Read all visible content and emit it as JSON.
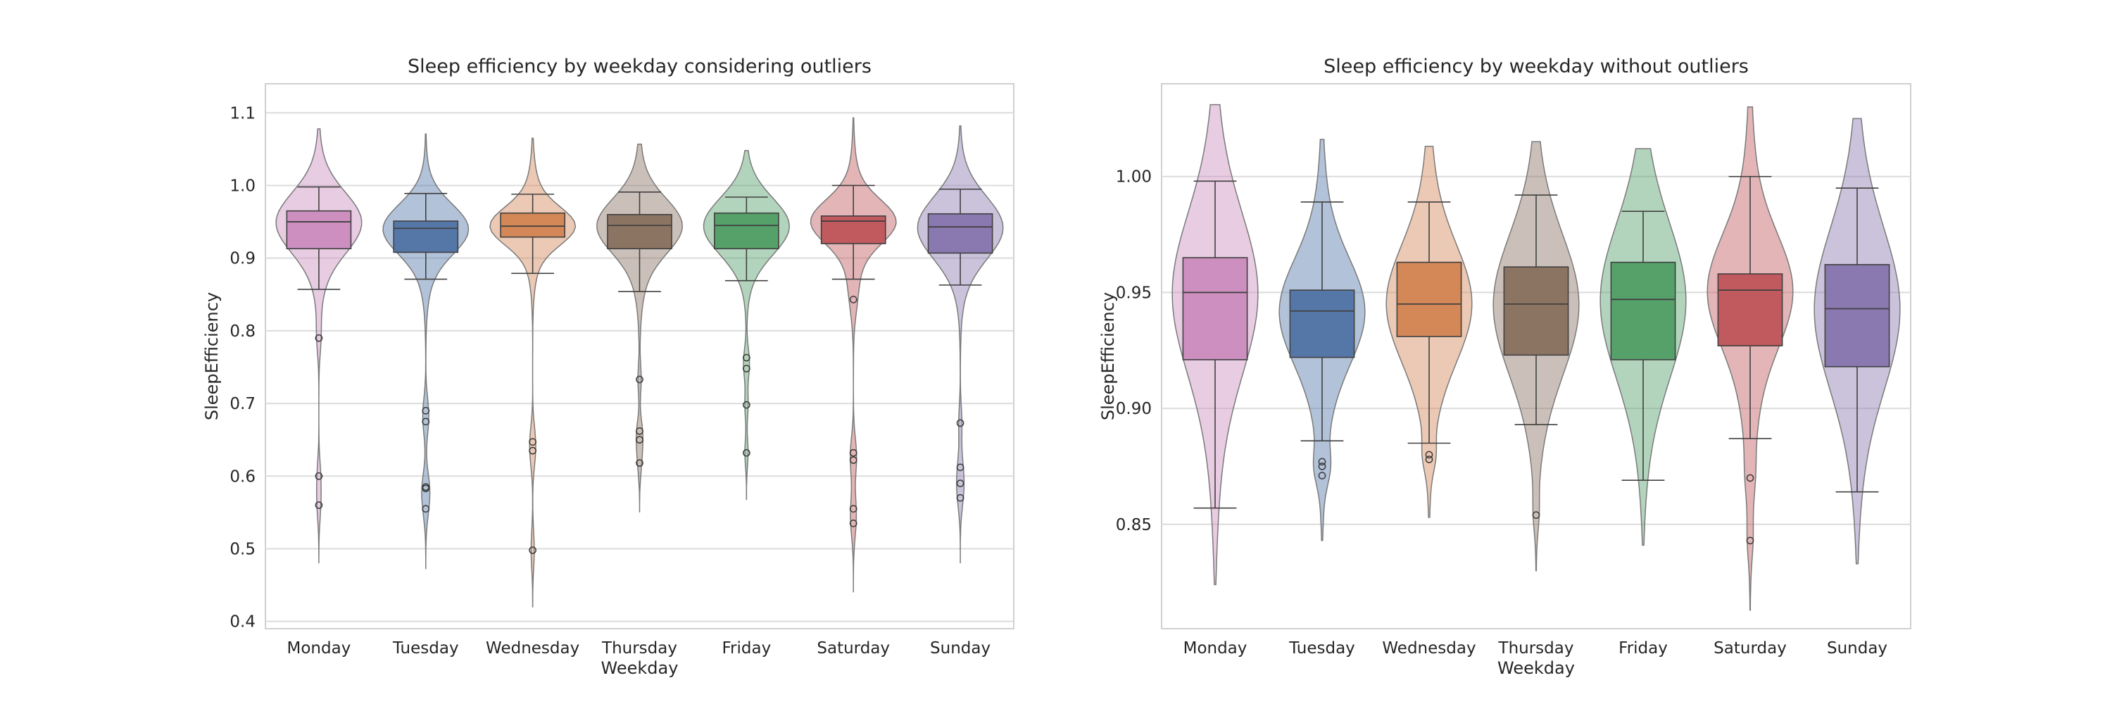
{
  "chart_data": [
    {
      "type": "violin+box",
      "title": "Sleep efficiency by weekday considering outliers",
      "xlabel": "Weekday",
      "ylabel": "SleepEfficiency",
      "ylim": [
        0.39,
        1.14
      ],
      "yticks": [
        0.4,
        0.5,
        0.6,
        0.7,
        0.8,
        0.9,
        1.0,
        1.1
      ],
      "ytick_labels": [
        "0.4",
        "0.5",
        "0.6",
        "0.7",
        "0.8",
        "0.9",
        "1.0",
        "1.1"
      ],
      "grid": true,
      "categories": [
        "Monday",
        "Tuesday",
        "Wednesday",
        "Thursday",
        "Friday",
        "Saturday",
        "Sunday"
      ],
      "colors": [
        "#cc8fbf",
        "#5577a8",
        "#d48858",
        "#8c7463",
        "#56a06a",
        "#c15a5f",
        "#8a79b0"
      ],
      "box": [
        {
          "whisker_low": 0.857,
          "q1": 0.913,
          "median": 0.95,
          "q3": 0.965,
          "whisker_high": 0.998
        },
        {
          "whisker_low": 0.871,
          "q1": 0.908,
          "median": 0.941,
          "q3": 0.951,
          "whisker_high": 0.989
        },
        {
          "whisker_low": 0.879,
          "q1": 0.929,
          "median": 0.944,
          "q3": 0.962,
          "whisker_high": 0.988
        },
        {
          "whisker_low": 0.854,
          "q1": 0.913,
          "median": 0.945,
          "q3": 0.96,
          "whisker_high": 0.991
        },
        {
          "whisker_low": 0.869,
          "q1": 0.913,
          "median": 0.945,
          "q3": 0.962,
          "whisker_high": 0.984
        },
        {
          "whisker_low": 0.871,
          "q1": 0.92,
          "median": 0.951,
          "q3": 0.958,
          "whisker_high": 1.0
        },
        {
          "whisker_low": 0.863,
          "q1": 0.907,
          "median": 0.943,
          "q3": 0.961,
          "whisker_high": 0.995
        }
      ],
      "outliers": [
        [
          0.79,
          0.6,
          0.56
        ],
        [
          0.69,
          0.675,
          0.585,
          0.583,
          0.555
        ],
        [
          0.647,
          0.635,
          0.498
        ],
        [
          0.733,
          0.662,
          0.65,
          0.618
        ],
        [
          0.763,
          0.748,
          0.698,
          0.632
        ],
        [
          0.843,
          0.632,
          0.622,
          0.555,
          0.535
        ],
        [
          0.673,
          0.612,
          0.59,
          0.57
        ]
      ],
      "violin_range": [
        [
          0.48,
          1.078
        ],
        [
          0.472,
          1.071
        ],
        [
          0.42,
          1.065
        ],
        [
          0.55,
          1.057
        ],
        [
          0.567,
          1.048
        ],
        [
          0.44,
          1.093
        ],
        [
          0.48,
          1.082
        ]
      ]
    },
    {
      "type": "violin+box",
      "title": "Sleep efficiency by weekday without outliers",
      "xlabel": "Weekday",
      "ylabel": "SleepEfficiency",
      "ylim": [
        0.805,
        1.04
      ],
      "yticks": [
        0.85,
        0.9,
        0.95,
        1.0
      ],
      "ytick_labels": [
        "0.85",
        "0.90",
        "0.95",
        "1.00"
      ],
      "grid": true,
      "categories": [
        "Monday",
        "Tuesday",
        "Wednesday",
        "Thursday",
        "Friday",
        "Saturday",
        "Sunday"
      ],
      "colors": [
        "#cc8fbf",
        "#5577a8",
        "#d48858",
        "#8c7463",
        "#56a06a",
        "#c15a5f",
        "#8a79b0"
      ],
      "box": [
        {
          "whisker_low": 0.857,
          "q1": 0.921,
          "median": 0.95,
          "q3": 0.965,
          "whisker_high": 0.998
        },
        {
          "whisker_low": 0.886,
          "q1": 0.922,
          "median": 0.942,
          "q3": 0.951,
          "whisker_high": 0.989
        },
        {
          "whisker_low": 0.885,
          "q1": 0.931,
          "median": 0.945,
          "q3": 0.963,
          "whisker_high": 0.989
        },
        {
          "whisker_low": 0.893,
          "q1": 0.923,
          "median": 0.945,
          "q3": 0.961,
          "whisker_high": 0.992
        },
        {
          "whisker_low": 0.869,
          "q1": 0.921,
          "median": 0.947,
          "q3": 0.963,
          "whisker_high": 0.985
        },
        {
          "whisker_low": 0.887,
          "q1": 0.927,
          "median": 0.951,
          "q3": 0.958,
          "whisker_high": 1.0
        },
        {
          "whisker_low": 0.864,
          "q1": 0.918,
          "median": 0.943,
          "q3": 0.962,
          "whisker_high": 0.995
        }
      ],
      "outliers": [
        [],
        [
          0.877,
          0.875,
          0.871
        ],
        [
          0.88,
          0.878
        ],
        [
          0.854
        ],
        [],
        [
          0.87,
          0.843
        ],
        []
      ],
      "violin_range": [
        [
          0.824,
          1.031
        ],
        [
          0.843,
          1.016
        ],
        [
          0.853,
          1.013
        ],
        [
          0.83,
          1.015
        ],
        [
          0.841,
          1.012
        ],
        [
          0.813,
          1.03
        ],
        [
          0.833,
          1.025
        ]
      ]
    }
  ]
}
